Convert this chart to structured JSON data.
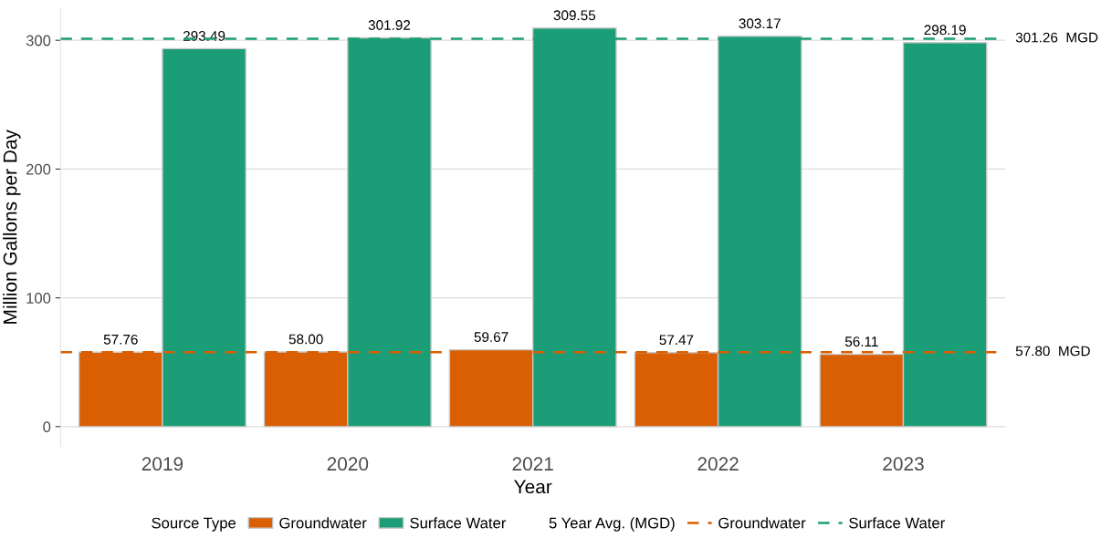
{
  "chart_data": {
    "type": "bar",
    "xlabel": "Year",
    "ylabel": "Million Gallons per Day",
    "categories": [
      "2019",
      "2020",
      "2021",
      "2022",
      "2023"
    ],
    "series": [
      {
        "name": "Groundwater",
        "color": "#d95f02",
        "values": [
          57.76,
          58.0,
          59.67,
          57.47,
          56.11
        ],
        "value_labels": [
          "57.76",
          "58.00",
          "59.67",
          "57.47",
          "56.11"
        ]
      },
      {
        "name": "Surface Water",
        "color": "#1b9e77",
        "values": [
          293.49,
          301.92,
          309.55,
          303.17,
          298.19
        ],
        "value_labels": [
          "293.49",
          "301.92",
          "309.55",
          "303.17",
          "298.19"
        ]
      }
    ],
    "ylim": [
      -15.48,
      325.03
    ],
    "yticks": [
      0,
      100,
      200,
      300
    ],
    "grid": "y",
    "legend": "bottom",
    "legend_title": "Source Type",
    "ref_lines": [
      {
        "axis": "y",
        "value": 57.8,
        "label": "57.80  MGD",
        "color": "#d95f02",
        "line_style": "dashed"
      },
      {
        "axis": "y",
        "value": 301.26,
        "label": "301.26  MGD",
        "color": "#1b9e77",
        "line_style": "dashed"
      }
    ],
    "annotations": [
      "5 Year Avg. (MGD)"
    ]
  }
}
